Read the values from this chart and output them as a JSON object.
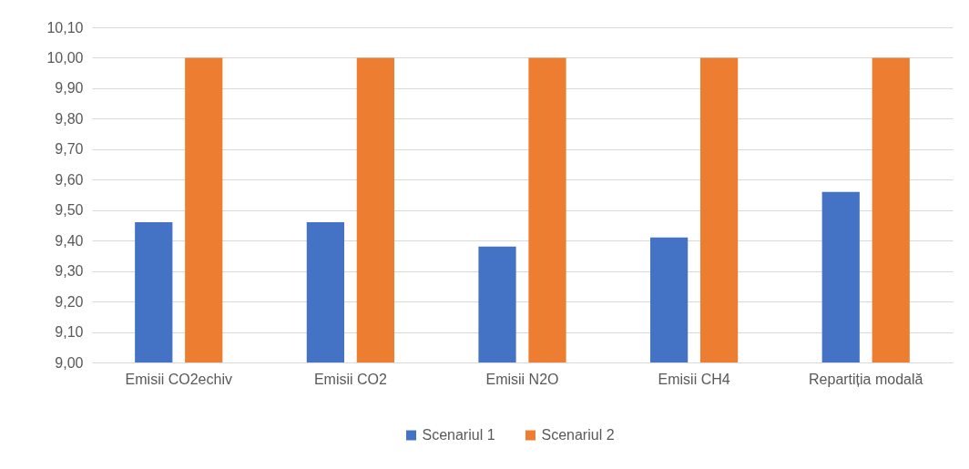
{
  "chart_data": {
    "type": "bar",
    "categories": [
      "Emisii CO2echiv",
      "Emisii CO2",
      "Emisii N2O",
      "Emisii CH4",
      "Repartiția modală"
    ],
    "series": [
      {
        "name": "Scenariul 1",
        "color": "#4472c4",
        "values": [
          9.46,
          9.46,
          9.38,
          9.41,
          9.56
        ]
      },
      {
        "name": "Scenariul 2",
        "color": "#ed7d31",
        "values": [
          10.0,
          10.0,
          10.0,
          10.0,
          10.0
        ]
      }
    ],
    "ylim": [
      9.0,
      10.1
    ],
    "yticks": [
      {
        "value": 9.0,
        "label": "9,00"
      },
      {
        "value": 9.1,
        "label": "9,10"
      },
      {
        "value": 9.2,
        "label": "9,20"
      },
      {
        "value": 9.3,
        "label": "9,30"
      },
      {
        "value": 9.4,
        "label": "9,40"
      },
      {
        "value": 9.5,
        "label": "9,50"
      },
      {
        "value": 9.6,
        "label": "9,60"
      },
      {
        "value": 9.7,
        "label": "9,70"
      },
      {
        "value": 9.8,
        "label": "9,80"
      },
      {
        "value": 9.9,
        "label": "9,90"
      },
      {
        "value": 10.0,
        "label": "10,00"
      },
      {
        "value": 10.1,
        "label": "10,10"
      }
    ],
    "grid": true,
    "legend": "bottom"
  }
}
